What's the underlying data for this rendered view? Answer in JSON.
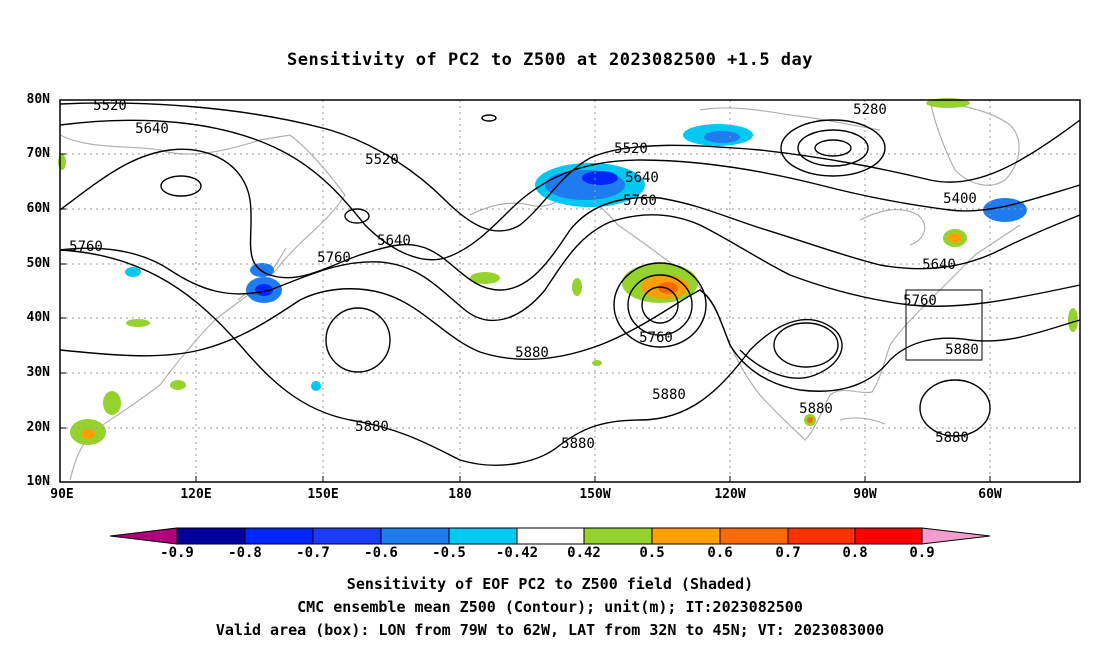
{
  "title": "Sensitivity of PC2 to Z500 at 2023082500 +1.5 day",
  "lat_labels": [
    "80N",
    "70N",
    "60N",
    "50N",
    "40N",
    "30N",
    "20N",
    "10N"
  ],
  "lon_labels": [
    "90E",
    "120E",
    "150E",
    "180",
    "150W",
    "120W",
    "90W",
    "60W"
  ],
  "colorbar": {
    "labels": [
      "-0.9",
      "-0.8",
      "-0.7",
      "-0.6",
      "-0.5",
      "-0.42",
      "0.42",
      "0.5",
      "0.6",
      "0.7",
      "0.8",
      "0.9"
    ],
    "colors": [
      "#b0007a",
      "#00009b",
      "#0026ff",
      "#1b3df5",
      "#1f7bf0",
      "#00c8f0",
      "#ffffff",
      "#96d22d",
      "#ffa000",
      "#ff6a00",
      "#ff3300",
      "#ff0000",
      "#f29cd1"
    ]
  },
  "contour_labels": [
    "5520",
    "5640",
    "5520",
    "5760",
    "5760",
    "5640",
    "5880",
    "5880",
    "5520",
    "5640",
    "5760",
    "5760",
    "5880",
    "5280",
    "5400",
    "5640",
    "5760",
    "5880",
    "5880",
    "5880",
    "5880"
  ],
  "valid_area_box": {
    "lon_west": "79W",
    "lon_east": "62W",
    "lat_south": "32N",
    "lat_north": "45N"
  },
  "footer": {
    "line1": "Sensitivity of EOF PC2 to Z500 field (Shaded)",
    "line2": "CMC ensemble mean Z500 (Contour); unit(m); IT:2023082500",
    "line3": "Valid area (box): LON from 79W to 62W, LAT from 32N to 45N; VT: 2023083000"
  }
}
